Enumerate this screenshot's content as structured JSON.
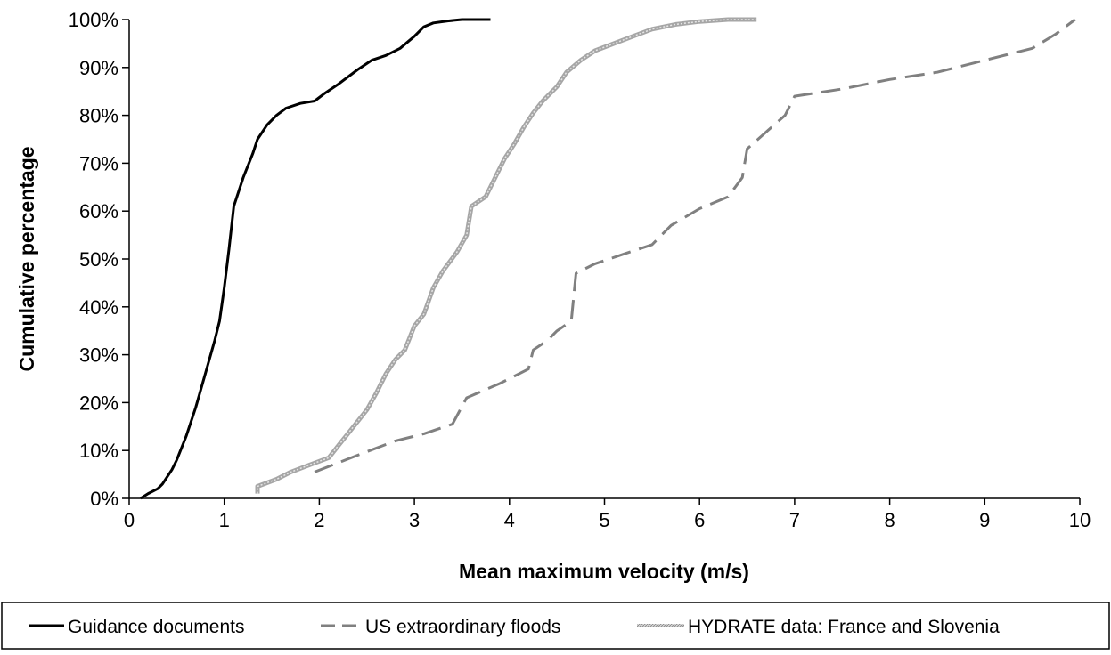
{
  "chart_data": {
    "type": "line",
    "title": "",
    "xlabel": "Mean maximum velocity (m/s)",
    "ylabel": "Cumulative percentage",
    "xlim": [
      0,
      10
    ],
    "ylim": [
      0,
      100
    ],
    "x_ticks": [
      "0",
      "1",
      "2",
      "3",
      "4",
      "5",
      "6",
      "7",
      "8",
      "9",
      "10"
    ],
    "y_ticks": [
      "0%",
      "10%",
      "20%",
      "30%",
      "40%",
      "50%",
      "60%",
      "70%",
      "80%",
      "90%",
      "100%"
    ],
    "grid": false,
    "legend_position": "bottom",
    "series": [
      {
        "name": "Guidance documents",
        "style": "solid",
        "color": "#000000",
        "points": [
          [
            0.12,
            0
          ],
          [
            0.2,
            1
          ],
          [
            0.3,
            2
          ],
          [
            0.35,
            3
          ],
          [
            0.45,
            6
          ],
          [
            0.5,
            8
          ],
          [
            0.6,
            13
          ],
          [
            0.7,
            19
          ],
          [
            0.8,
            26
          ],
          [
            0.9,
            33
          ],
          [
            0.95,
            37
          ],
          [
            1.0,
            44
          ],
          [
            1.05,
            52
          ],
          [
            1.1,
            61
          ],
          [
            1.2,
            67
          ],
          [
            1.3,
            72
          ],
          [
            1.35,
            75
          ],
          [
            1.45,
            78
          ],
          [
            1.55,
            80
          ],
          [
            1.65,
            81.5
          ],
          [
            1.8,
            82.5
          ],
          [
            1.95,
            83
          ],
          [
            2.05,
            84.5
          ],
          [
            2.2,
            86.5
          ],
          [
            2.4,
            89.5
          ],
          [
            2.55,
            91.5
          ],
          [
            2.7,
            92.5
          ],
          [
            2.85,
            94
          ],
          [
            3.0,
            96.5
          ],
          [
            3.1,
            98.5
          ],
          [
            3.2,
            99.3
          ],
          [
            3.35,
            99.7
          ],
          [
            3.5,
            100
          ],
          [
            3.8,
            100
          ]
        ]
      },
      {
        "name": "US extraordinary floods",
        "style": "dashed",
        "color": "#808080",
        "points": [
          [
            1.95,
            5.5
          ],
          [
            2.4,
            9
          ],
          [
            2.8,
            12
          ],
          [
            3.1,
            13.5
          ],
          [
            3.4,
            15.5
          ],
          [
            3.55,
            21
          ],
          [
            3.9,
            24
          ],
          [
            4.2,
            27
          ],
          [
            4.25,
            31
          ],
          [
            4.4,
            33
          ],
          [
            4.5,
            35
          ],
          [
            4.65,
            37
          ],
          [
            4.7,
            47
          ],
          [
            4.9,
            49
          ],
          [
            5.2,
            51
          ],
          [
            5.5,
            53
          ],
          [
            5.7,
            57
          ],
          [
            6.0,
            60.5
          ],
          [
            6.3,
            63
          ],
          [
            6.45,
            67
          ],
          [
            6.5,
            73
          ],
          [
            6.7,
            76.5
          ],
          [
            6.9,
            80
          ],
          [
            7.0,
            84
          ],
          [
            7.5,
            85.5
          ],
          [
            8.0,
            87.5
          ],
          [
            8.5,
            89
          ],
          [
            9.0,
            91.5
          ],
          [
            9.5,
            94
          ],
          [
            9.75,
            97
          ],
          [
            9.95,
            100
          ]
        ]
      },
      {
        "name": "HYDRATE data: France and Slovenia",
        "style": "hatched",
        "color": "#a6a6a6",
        "points": [
          [
            1.35,
            1
          ],
          [
            1.35,
            2.5
          ],
          [
            1.55,
            4
          ],
          [
            1.7,
            5.5
          ],
          [
            1.9,
            7
          ],
          [
            2.1,
            8.5
          ],
          [
            2.2,
            11
          ],
          [
            2.3,
            13.5
          ],
          [
            2.4,
            16
          ],
          [
            2.5,
            18.5
          ],
          [
            2.6,
            22
          ],
          [
            2.7,
            26
          ],
          [
            2.8,
            29
          ],
          [
            2.9,
            31
          ],
          [
            3.0,
            36
          ],
          [
            3.1,
            38.5
          ],
          [
            3.2,
            44
          ],
          [
            3.3,
            47.5
          ],
          [
            3.45,
            51.5
          ],
          [
            3.55,
            55
          ],
          [
            3.6,
            61
          ],
          [
            3.75,
            63
          ],
          [
            3.85,
            67
          ],
          [
            3.95,
            71
          ],
          [
            4.05,
            74
          ],
          [
            4.15,
            77.5
          ],
          [
            4.25,
            80.5
          ],
          [
            4.35,
            83
          ],
          [
            4.5,
            86
          ],
          [
            4.6,
            89
          ],
          [
            4.75,
            91.5
          ],
          [
            4.9,
            93.5
          ],
          [
            5.1,
            95
          ],
          [
            5.3,
            96.5
          ],
          [
            5.5,
            98
          ],
          [
            5.75,
            99
          ],
          [
            6.0,
            99.6
          ],
          [
            6.3,
            100
          ],
          [
            6.6,
            100
          ]
        ]
      }
    ]
  }
}
